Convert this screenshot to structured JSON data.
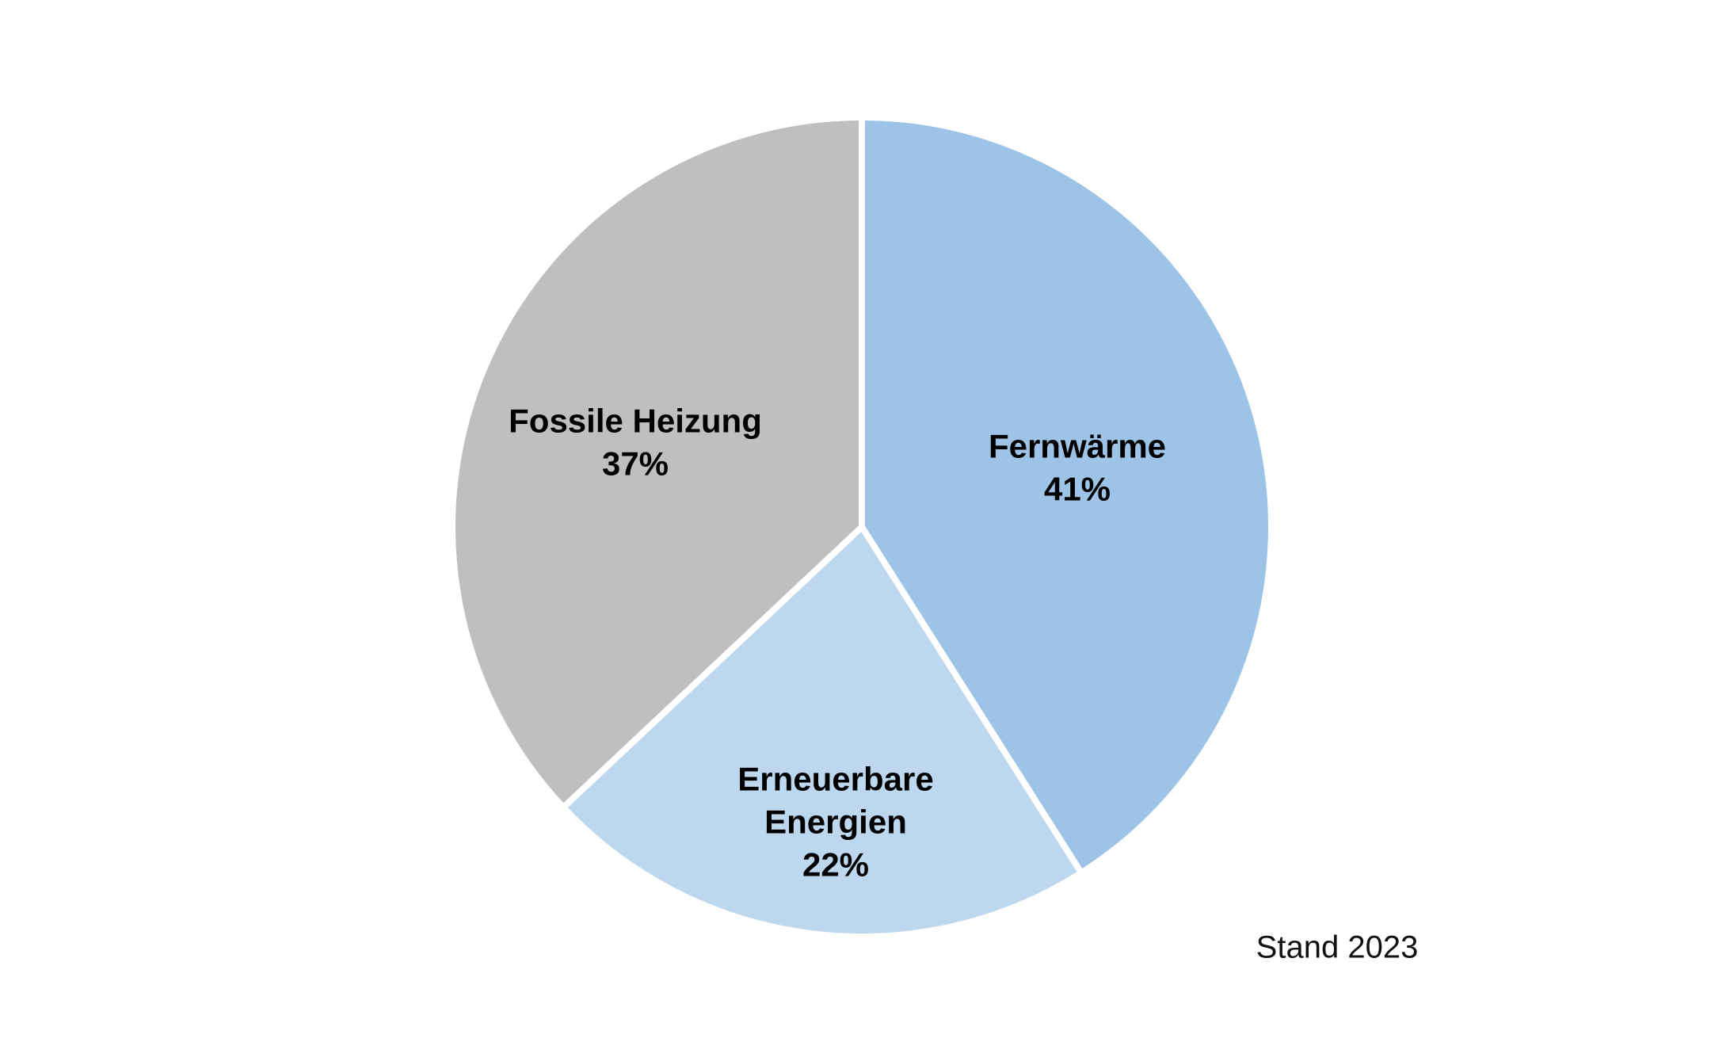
{
  "chart_data": {
    "type": "pie",
    "title": "",
    "categories": [
      "Fernwärme",
      "Erneuerbare Energien",
      "Fossile Heizung"
    ],
    "values": [
      41,
      22,
      37
    ],
    "value_labels": [
      "41%",
      "22%",
      "37%"
    ],
    "colors": [
      "#9DC3E6",
      "#BDD7EE",
      "#BFBFBF"
    ],
    "slice_border_color": "#FFFFFF",
    "label_text_color": "#000000",
    "start_angle_deg": 0,
    "direction": "clockwise",
    "legend": "none",
    "annotation": "Stand 2023",
    "background": "#FFFFFF"
  }
}
